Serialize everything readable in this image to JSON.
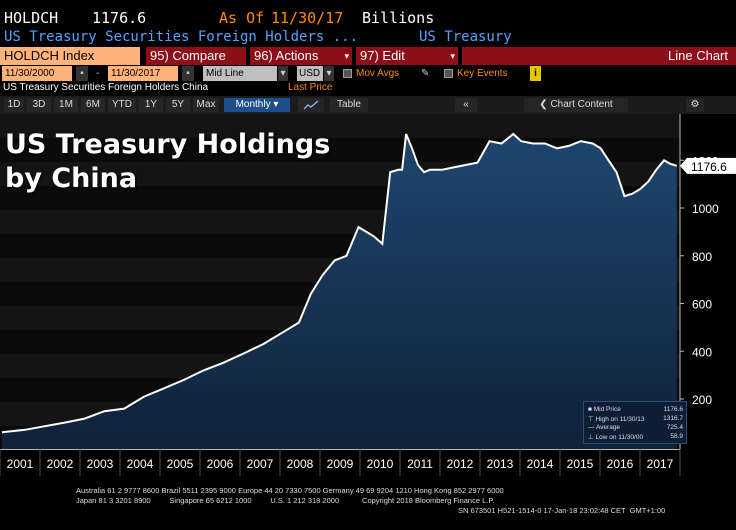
{
  "header": {
    "ticker": "HOLDCH",
    "last_value": "1176.6",
    "as_of_label": "As Of",
    "as_of_date": "11/30/17",
    "units": "Billions",
    "description": "US Treasury Securities Foreign Holders ...",
    "category": "US Treasury"
  },
  "menu": {
    "index_label": "HOLDCH Index",
    "compare_label": "95) Compare",
    "actions_label": "96) Actions",
    "edit_label": "97) Edit",
    "chart_type_label": "Line Chart"
  },
  "controls": {
    "start_date": "11/30/2000",
    "end_date": "11/30/2017",
    "price_field": "Mid Line",
    "currency": "USD",
    "mov_avgs_label": "Mov Avgs",
    "key_events_label": "Key Events"
  },
  "series_bar": {
    "series_name": "US Treasury Securities Foreign Holders China",
    "last_price_label": "Last Price"
  },
  "toolbar": {
    "ranges": [
      "1D",
      "3D",
      "1M",
      "6M",
      "YTD",
      "1Y",
      "5Y",
      "Max"
    ],
    "period": "Monthly",
    "table_label": "Table",
    "chart_content_label": "Chart Content"
  },
  "colors": {
    "area_fill": "#15304f",
    "line": "#ffffff",
    "menu_red": "#8c0f1a",
    "accent_orange": "#ff8a00",
    "link_blue": "#5aa0ff",
    "active_tab": "#1f4e8a"
  },
  "chart_data": {
    "type": "area",
    "title": "US Treasury Holdings\nby China",
    "xlabel": "",
    "ylabel": "",
    "ylim": [
      0,
      1400
    ],
    "y_ticks": [
      200,
      400,
      600,
      800,
      1000,
      1200
    ],
    "x_tick_labels": [
      "2001",
      "2002",
      "2003",
      "2004",
      "2005",
      "2006",
      "2007",
      "2008",
      "2009",
      "2010",
      "2011",
      "2012",
      "2013",
      "2014",
      "2015",
      "2016",
      "2017"
    ],
    "last_value_label": "1176.6",
    "series": [
      {
        "name": "Mid Price",
        "x": [
          2000.92,
          2001.5,
          2002.0,
          2002.5,
          2003.0,
          2003.5,
          2004.0,
          2004.5,
          2005.0,
          2005.5,
          2006.0,
          2006.5,
          2007.0,
          2007.5,
          2008.0,
          2008.4,
          2008.7,
          2009.0,
          2009.3,
          2009.6,
          2009.9,
          2010.1,
          2010.3,
          2010.5,
          2010.7,
          2010.9,
          2011.0,
          2011.1,
          2011.25,
          2011.4,
          2011.55,
          2011.7,
          2012.0,
          2012.3,
          2012.6,
          2012.9,
          2013.2,
          2013.5,
          2013.8,
          2014.0,
          2014.3,
          2014.6,
          2014.9,
          2015.2,
          2015.5,
          2015.8,
          2016.0,
          2016.2,
          2016.4,
          2016.6,
          2016.8,
          2017.0,
          2017.2,
          2017.4,
          2017.6,
          2017.75,
          2017.92
        ],
        "y": [
          61,
          71,
          86,
          101,
          118,
          149,
          160,
          210,
          245,
          280,
          320,
          352,
          390,
          430,
          480,
          520,
          640,
          720,
          780,
          800,
          920,
          900,
          880,
          850,
          1150,
          1160,
          1160,
          1310,
          1250,
          1180,
          1150,
          1160,
          1160,
          1170,
          1180,
          1190,
          1280,
          1270,
          1310,
          1280,
          1270,
          1270,
          1250,
          1260,
          1280,
          1270,
          1250,
          1200,
          1150,
          1050,
          1060,
          1080,
          1110,
          1160,
          1200,
          1185,
          1176.6
        ]
      }
    ],
    "legend": {
      "placement": "bottom-right",
      "rows": [
        {
          "label": "Mid Price",
          "value": "1176.6"
        },
        {
          "label": "High on 11/30/13",
          "value": "1316.7"
        },
        {
          "label": "Average",
          "value": "725.4"
        },
        {
          "label": "Low on 11/30/00",
          "value": "58.9"
        }
      ]
    },
    "grid": false
  },
  "footer": {
    "line1": "Australia 61 2 9777 8600 Brazil 5511 2395 9000 Europe 44 20 7330 7500 Germany 49 69 9204 1210 Hong Kong 852 2977 6000",
    "line2": "Japan 81 3 3201 8900         Singapore 65 6212 1000         U.S. 1 212 318 2000           Copyright 2018 Bloomberg Finance L.P.",
    "line3": "SN 673501 H521-1514-0 17-Jan-18 23:02:48 CET  GMT+1:00"
  }
}
